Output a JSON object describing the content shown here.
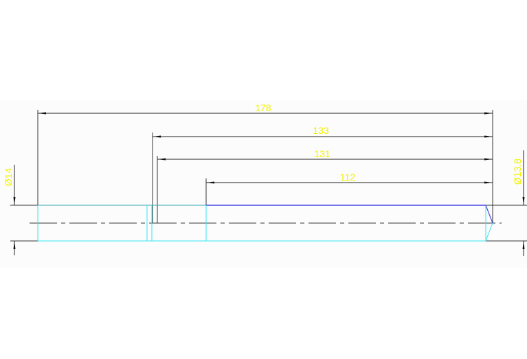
{
  "drawing": {
    "dimensions": {
      "overall": "178",
      "d133": "133",
      "d131": "131",
      "d112": "112",
      "dia_left": "Ø14",
      "dia_right": "Ø13.8"
    },
    "colors": {
      "dimension_line": "#222222",
      "dimension_text": "#f2f200",
      "outline_cyan": "#33e6f0",
      "outline_blue": "#4a4ae6",
      "centerline": "#333333",
      "background": "#fbfcfb"
    }
  }
}
